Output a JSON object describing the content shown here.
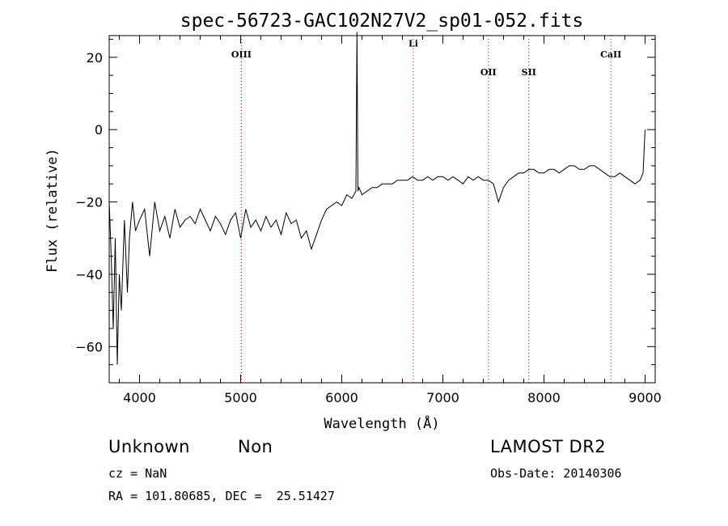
{
  "chart_data": {
    "type": "line",
    "title": "spec-56723-GAC102N27V2_sp01-052.fits",
    "xlabel": "Wavelength (Å)",
    "ylabel": "Flux (relative)",
    "xlim": [
      3700,
      9100
    ],
    "ylim": [
      -70,
      26
    ],
    "x_ticks": [
      4000,
      5000,
      6000,
      7000,
      8000,
      9000
    ],
    "y_ticks": [
      -60,
      -40,
      -20,
      0,
      20
    ],
    "x_tick_labels": [
      "4000",
      "5000",
      "6000",
      "7000",
      "8000",
      "9000"
    ],
    "y_tick_labels": [
      "−60",
      "−40",
      "−20",
      "0",
      "20"
    ],
    "grid": false,
    "line_color": "#000000",
    "marker_color": "#cc0000",
    "spectral_lines": [
      {
        "name": "OIII",
        "wavelength": 5007,
        "label_flux": 20
      },
      {
        "name": "Li",
        "wavelength": 6708,
        "label_flux": 23
      },
      {
        "name": "OII",
        "wavelength": 7450,
        "label_flux": 15
      },
      {
        "name": "SII",
        "wavelength": 7850,
        "label_flux": 15
      },
      {
        "name": "CaII",
        "wavelength": 8662,
        "label_flux": 20
      }
    ],
    "series": [
      {
        "x": [
          3700,
          3720,
          3740,
          3760,
          3780,
          3800,
          3820,
          3850,
          3880,
          3900,
          3930,
          3960,
          4000,
          4050,
          4100,
          4150,
          4200,
          4250,
          4300,
          4350,
          4400,
          4450,
          4500,
          4550,
          4600,
          4650,
          4700,
          4750,
          4800,
          4850,
          4900,
          4950,
          5000,
          5050,
          5100,
          5150,
          5200,
          5250,
          5300,
          5350,
          5400,
          5450,
          5500,
          5550,
          5600,
          5650,
          5700,
          5750,
          5800,
          5850,
          5900,
          5950,
          6000,
          6050,
          6100,
          6140,
          6150,
          6160,
          6170,
          6200,
          6250,
          6300,
          6350,
          6400,
          6450,
          6500,
          6550,
          6600,
          6650,
          6700,
          6750,
          6800,
          6850,
          6900,
          6950,
          7000,
          7050,
          7100,
          7150,
          7200,
          7250,
          7300,
          7350,
          7400,
          7450,
          7500,
          7550,
          7600,
          7650,
          7700,
          7750,
          7800,
          7850,
          7900,
          7950,
          8000,
          8050,
          8100,
          8150,
          8200,
          8250,
          8300,
          8350,
          8400,
          8450,
          8500,
          8550,
          8600,
          8650,
          8700,
          8750,
          8800,
          8850,
          8900,
          8950,
          8980,
          9000
        ],
        "y": [
          -20,
          -35,
          -55,
          -30,
          -65,
          -40,
          -50,
          -25,
          -45,
          -30,
          -20,
          -28,
          -25,
          -22,
          -35,
          -20,
          -28,
          -24,
          -30,
          -22,
          -27,
          -25,
          -24,
          -26,
          -22,
          -25,
          -28,
          -24,
          -26,
          -29,
          -25,
          -23,
          -30,
          -22,
          -27,
          -25,
          -28,
          -24,
          -27,
          -25,
          -29,
          -23,
          -26,
          -25,
          -30,
          -28,
          -33,
          -29,
          -25,
          -22,
          -21,
          -20,
          -21,
          -18,
          -19,
          -17,
          27,
          -17,
          -16,
          -18,
          -17,
          -16,
          -16,
          -15,
          -15,
          -15,
          -14,
          -14,
          -14,
          -13,
          -14,
          -14,
          -13,
          -14,
          -13,
          -13,
          -14,
          -13,
          -14,
          -15,
          -13,
          -14,
          -13,
          -14,
          -14,
          -15,
          -20,
          -16,
          -14,
          -13,
          -12,
          -12,
          -11,
          -11,
          -12,
          -12,
          -11,
          -11,
          -12,
          -11,
          -10,
          -10,
          -11,
          -11,
          -10,
          -10,
          -11,
          -12,
          -13,
          -13,
          -12,
          -13,
          -14,
          -15,
          -14,
          -12,
          0
        ]
      }
    ]
  },
  "footer": {
    "object_class": "Unknown",
    "subclass": "Non",
    "survey": "LAMOST DR2",
    "redshift": "cz = NaN",
    "obs_date": "Obs-Date: 20140306",
    "coords": "RA = 101.80685, DEC =  25.51427"
  }
}
